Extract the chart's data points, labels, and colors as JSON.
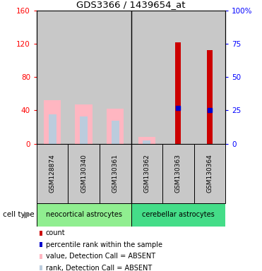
{
  "title": "GDS3366 / 1439654_at",
  "categories": [
    "GSM128874",
    "GSM130340",
    "GSM130361",
    "GSM130362",
    "GSM130363",
    "GSM130364"
  ],
  "count_values": [
    0,
    0,
    0,
    0,
    122,
    113
  ],
  "percentile_values": [
    0,
    0,
    0,
    0,
    27,
    25
  ],
  "value_absent": [
    52,
    47,
    42,
    8,
    0,
    0
  ],
  "rank_absent": [
    35,
    33,
    28,
    4,
    0,
    0
  ],
  "ylim_left": [
    0,
    160
  ],
  "ylim_right": [
    0,
    100
  ],
  "yticks_left": [
    0,
    40,
    80,
    120,
    160
  ],
  "yticks_right": [
    0,
    25,
    50,
    75,
    100
  ],
  "yticklabels_right": [
    "0",
    "25",
    "50",
    "75",
    "100%"
  ],
  "count_color": "#CC0000",
  "percentile_color": "#0000CC",
  "value_absent_color": "#FFB6C1",
  "rank_absent_color": "#BBCCDD",
  "col_bg_color": "#C8C8C8",
  "neocortical_color": "#90EE90",
  "cerebellar_color": "#44DD88",
  "legend_items": [
    {
      "color": "#CC0000",
      "label": "count"
    },
    {
      "color": "#0000CC",
      "label": "percentile rank within the sample"
    },
    {
      "color": "#FFB6C1",
      "label": "value, Detection Call = ABSENT"
    },
    {
      "color": "#BBCCDD",
      "label": "rank, Detection Call = ABSENT"
    }
  ],
  "value_bar_width": 0.55,
  "rank_bar_width": 0.25,
  "count_bar_width": 0.18
}
